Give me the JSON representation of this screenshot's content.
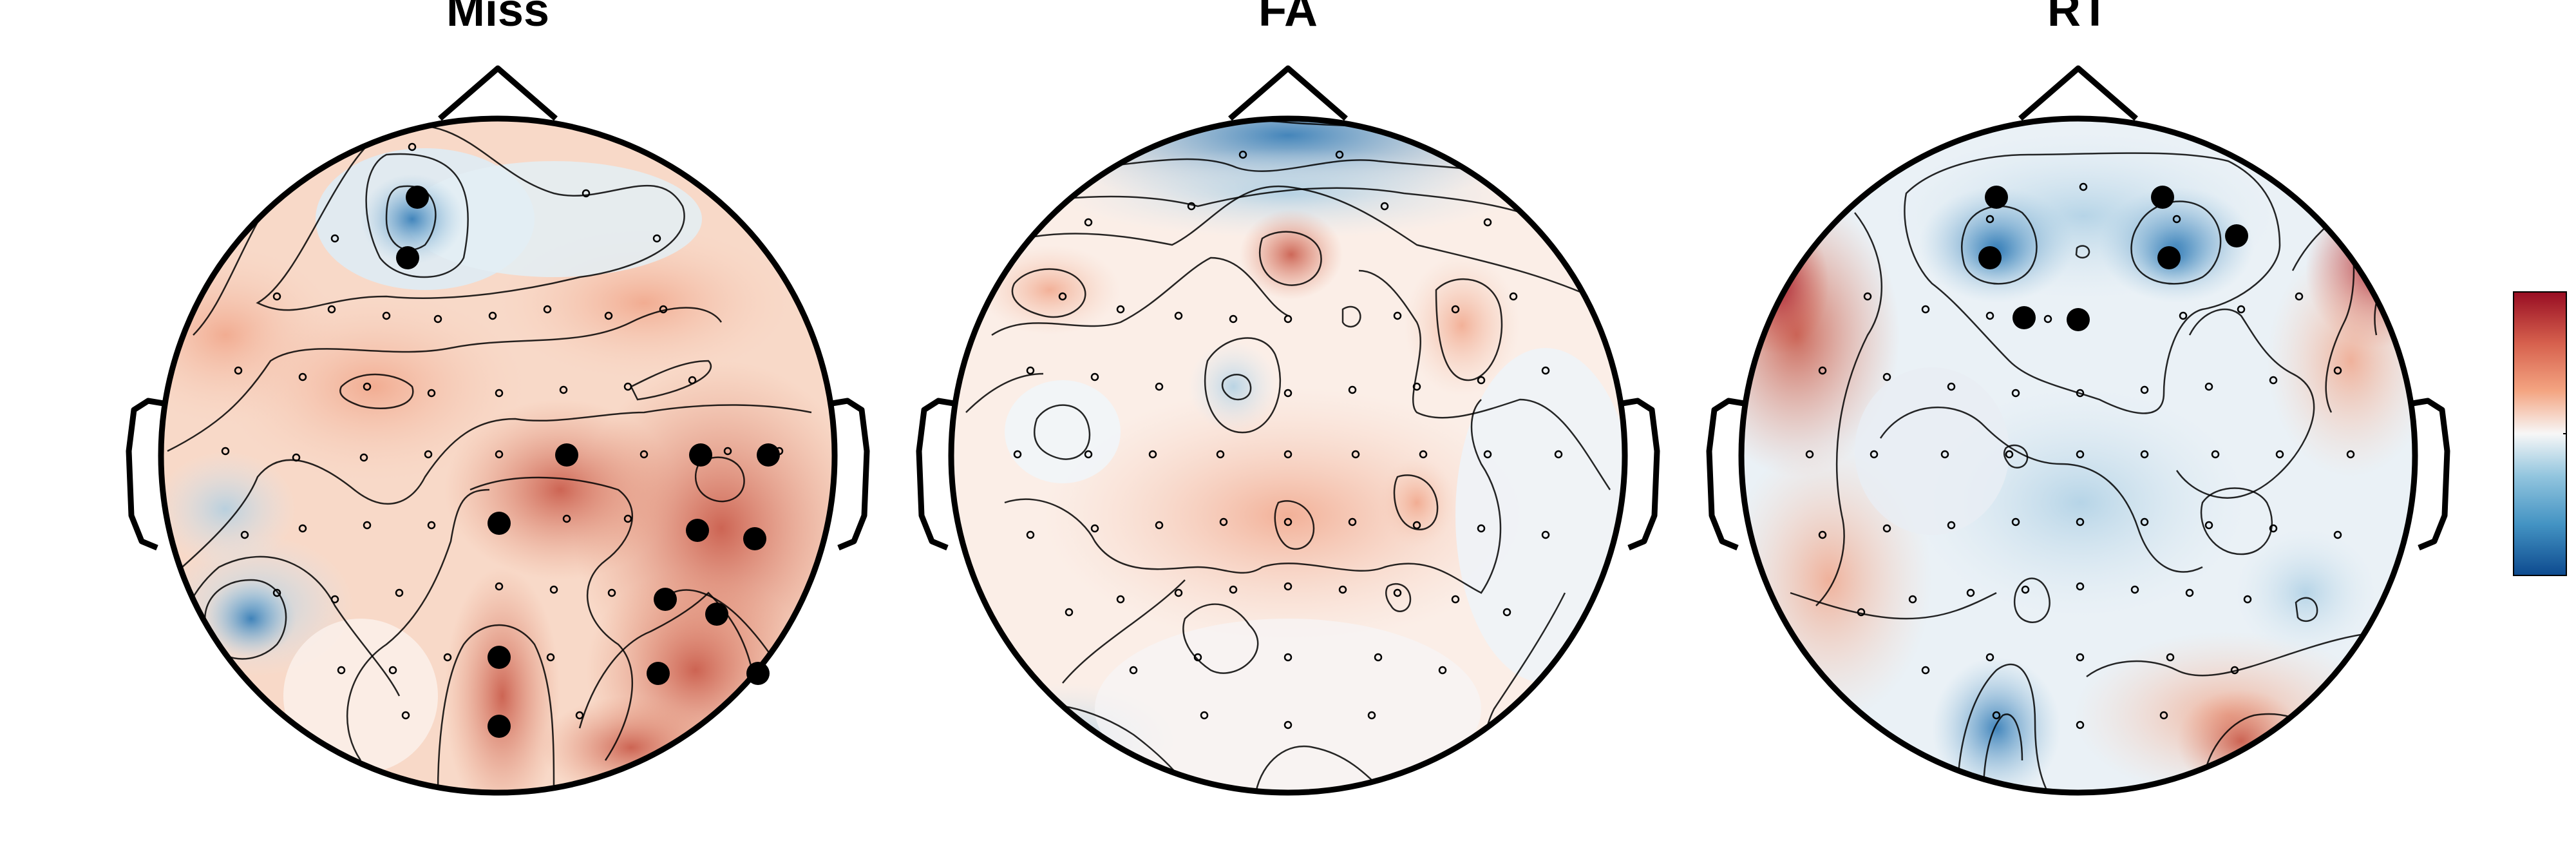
{
  "panels": [
    {
      "title": "Miss"
    },
    {
      "title": "FA"
    },
    {
      "title": "RT"
    }
  ],
  "colorbar": {
    "colormap": "RdBu_r",
    "top_color": "#980d23",
    "mid_color": "#f7f7f7",
    "bottom_color": "#0d4a8f"
  }
}
